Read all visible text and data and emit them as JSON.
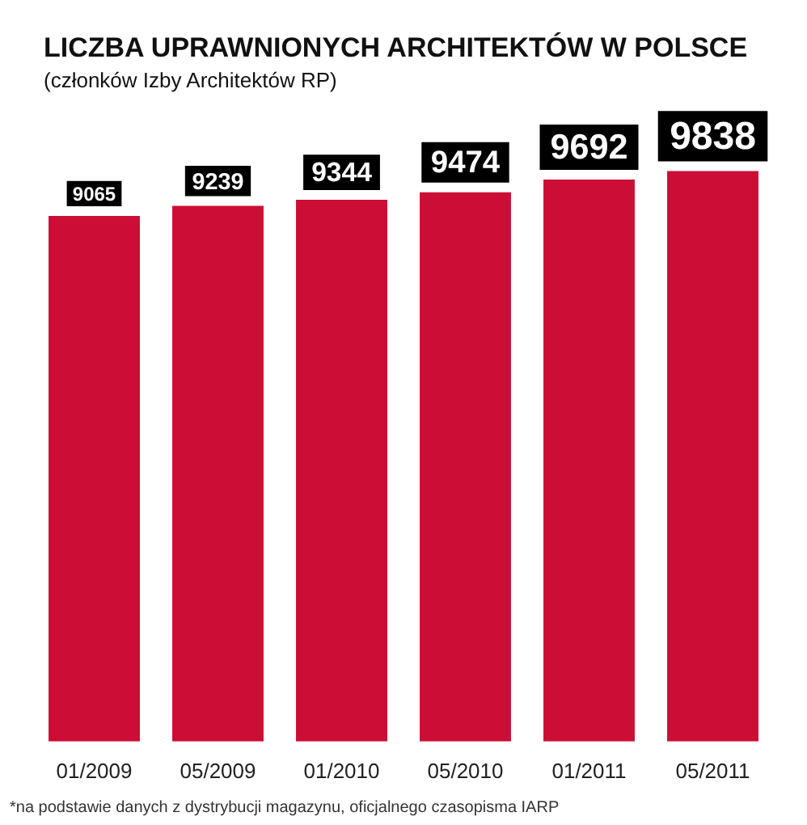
{
  "chart_data": {
    "type": "bar",
    "title": "LICZBA UPRAWNIONYCH ARCHITEKTÓW W POLSCE",
    "subtitle": "(członków Izby Architektów RP)",
    "categories": [
      "01/2009",
      "05/2009",
      "01/2010",
      "05/2010",
      "01/2011",
      "05/2011"
    ],
    "values": [
      9065,
      9239,
      9344,
      9474,
      9692,
      9838
    ],
    "color": "#cc0d36",
    "data_labels": true,
    "annotations": [
      "*na podstawie danych z dystrybucji magazynu, oficjalnego czasopisma IARP"
    ]
  }
}
